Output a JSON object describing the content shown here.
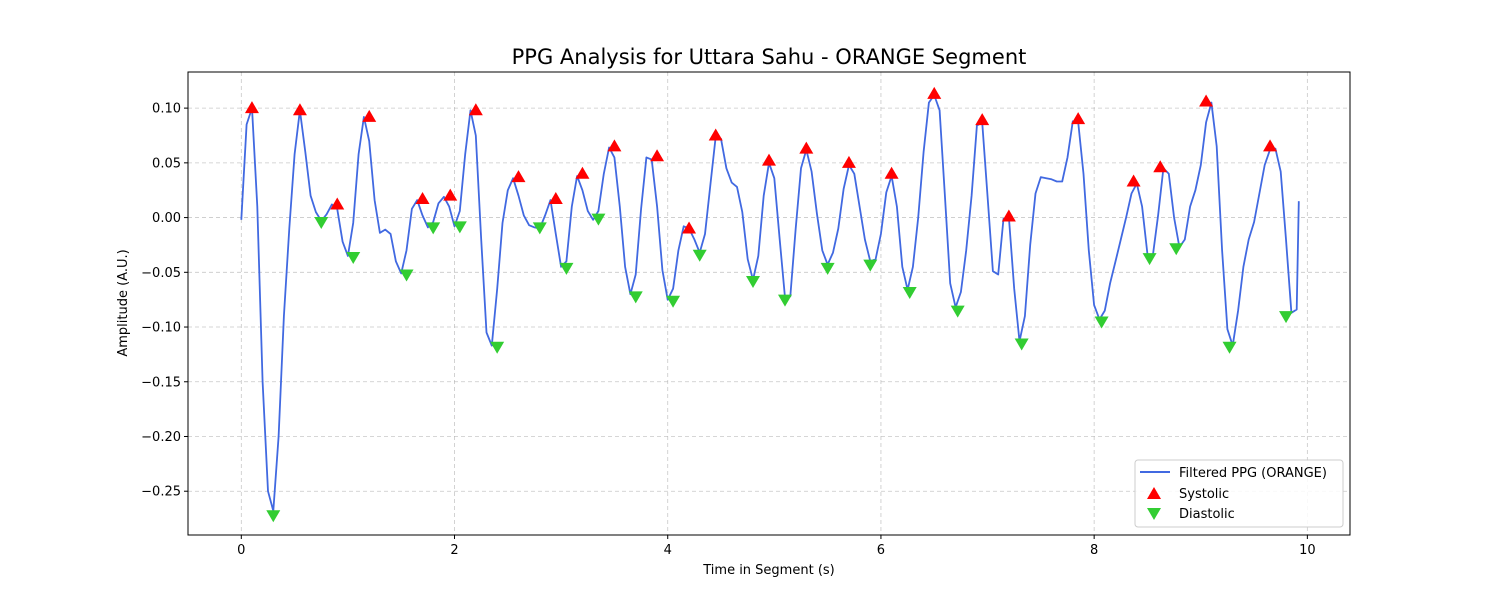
{
  "chart_data": {
    "type": "line",
    "title": "PPG Analysis for Uttara Sahu - ORANGE Segment",
    "xlabel": "Time in Segment (s)",
    "ylabel": "Amplitude (A.U.)",
    "xlim": [
      -0.5,
      10.4
    ],
    "ylim": [
      -0.29,
      0.133
    ],
    "xticks": [
      0,
      2,
      4,
      6,
      8,
      10
    ],
    "xtick_labels": [
      "0",
      "2",
      "4",
      "6",
      "8",
      "10"
    ],
    "yticks": [
      0.1,
      0.05,
      0.0,
      -0.05,
      -0.1,
      -0.15,
      -0.2,
      -0.25
    ],
    "ytick_labels": [
      "0.10",
      "0.05",
      "0.00",
      "−0.05",
      "−0.10",
      "−0.15",
      "−0.20",
      "−0.25"
    ],
    "grid": true,
    "legend_position": "bottom-right",
    "colors": {
      "line": "#4169e1",
      "systolic": "#ff0000",
      "diastolic": "#32cd32"
    },
    "series": [
      {
        "name": "Filtered PPG (ORANGE)",
        "kind": "line",
        "x": [
          0.0,
          0.05,
          0.1,
          0.15,
          0.2,
          0.25,
          0.3,
          0.35,
          0.4,
          0.45,
          0.5,
          0.55,
          0.6,
          0.65,
          0.7,
          0.75,
          0.8,
          0.85,
          0.9,
          0.95,
          1.0,
          1.05,
          1.1,
          1.15,
          1.2,
          1.25,
          1.3,
          1.35,
          1.4,
          1.45,
          1.5,
          1.55,
          1.6,
          1.65,
          1.7,
          1.75,
          1.8,
          1.85,
          1.9,
          1.95,
          2.0,
          2.05,
          2.1,
          2.15,
          2.2,
          2.25,
          2.3,
          2.35,
          2.4,
          2.45,
          2.5,
          2.55,
          2.6,
          2.65,
          2.7,
          2.75,
          2.8,
          2.85,
          2.9,
          2.95,
          3.0,
          3.05,
          3.1,
          3.15,
          3.2,
          3.25,
          3.3,
          3.35,
          3.4,
          3.45,
          3.5,
          3.55,
          3.6,
          3.65,
          3.7,
          3.75,
          3.8,
          3.85,
          3.9,
          3.95,
          4.0,
          4.05,
          4.1,
          4.15,
          4.2,
          4.25,
          4.3,
          4.35,
          4.4,
          4.45,
          4.5,
          4.55,
          4.6,
          4.65,
          4.7,
          4.75,
          4.8,
          4.85,
          4.9,
          4.95,
          5.0,
          5.05,
          5.1,
          5.15,
          5.2,
          5.25,
          5.3,
          5.35,
          5.4,
          5.45,
          5.5,
          5.55,
          5.6,
          5.65,
          5.7,
          5.75,
          5.8,
          5.85,
          5.9,
          5.95,
          6.0,
          6.05,
          6.1,
          6.15,
          6.2,
          6.25,
          6.3,
          6.35,
          6.4,
          6.45,
          6.5,
          6.55,
          6.6,
          6.65,
          6.7,
          6.75,
          6.8,
          6.85,
          6.9,
          6.95,
          7.0,
          7.05,
          7.1,
          7.15,
          7.2,
          7.25,
          7.3,
          7.35,
          7.4,
          7.45,
          7.5,
          7.55,
          7.6,
          7.65,
          7.7,
          7.75,
          7.8,
          7.85,
          7.9,
          7.95,
          8.0,
          8.05,
          8.1,
          8.15,
          8.2,
          8.25,
          8.3,
          8.35,
          8.4,
          8.45,
          8.5,
          8.55,
          8.6,
          8.65,
          8.7,
          8.75,
          8.8,
          8.85,
          8.9,
          8.95,
          9.0,
          9.05,
          9.1,
          9.15,
          9.2,
          9.25,
          9.3,
          9.35,
          9.4,
          9.45,
          9.5,
          9.55,
          9.6,
          9.65,
          9.7,
          9.75,
          9.8,
          9.85,
          9.9,
          9.92
        ],
        "y": [
          -0.002,
          0.085,
          0.1,
          0.01,
          -0.15,
          -0.25,
          -0.268,
          -0.2,
          -0.09,
          -0.01,
          0.058,
          0.098,
          0.06,
          0.02,
          0.005,
          -0.003,
          0.003,
          0.012,
          0.008,
          -0.022,
          -0.035,
          -0.005,
          0.058,
          0.092,
          0.07,
          0.016,
          -0.014,
          -0.011,
          -0.015,
          -0.04,
          -0.051,
          -0.03,
          0.008,
          0.016,
          0.002,
          -0.009,
          -0.004,
          0.013,
          0.019,
          0.01,
          -0.008,
          0.006,
          0.058,
          0.098,
          0.075,
          -0.02,
          -0.105,
          -0.117,
          -0.065,
          -0.005,
          0.025,
          0.036,
          0.02,
          0.002,
          -0.007,
          -0.009,
          -0.01,
          0.002,
          0.016,
          -0.015,
          -0.045,
          -0.04,
          0.01,
          0.038,
          0.025,
          0.006,
          -0.002,
          0.006,
          0.04,
          0.064,
          0.055,
          0.01,
          -0.045,
          -0.07,
          -0.052,
          0.008,
          0.055,
          0.053,
          0.01,
          -0.048,
          -0.075,
          -0.065,
          -0.03,
          -0.008,
          -0.01,
          -0.02,
          -0.032,
          -0.015,
          0.03,
          0.074,
          0.072,
          0.045,
          0.032,
          0.028,
          0.005,
          -0.038,
          -0.057,
          -0.035,
          0.02,
          0.05,
          0.036,
          -0.02,
          -0.073,
          -0.072,
          -0.01,
          0.045,
          0.062,
          0.042,
          0.003,
          -0.03,
          -0.043,
          -0.032,
          -0.01,
          0.026,
          0.048,
          0.04,
          0.01,
          -0.02,
          -0.04,
          -0.038,
          -0.015,
          0.023,
          0.038,
          0.01,
          -0.045,
          -0.066,
          -0.045,
          0.0,
          0.06,
          0.105,
          0.112,
          0.098,
          0.02,
          -0.06,
          -0.082,
          -0.068,
          -0.03,
          0.02,
          0.084,
          0.087,
          0.02,
          -0.049,
          -0.052,
          -0.001,
          0.0,
          -0.065,
          -0.113,
          -0.09,
          -0.025,
          0.022,
          0.037,
          0.036,
          0.035,
          0.033,
          0.033,
          0.055,
          0.088,
          0.087,
          0.04,
          -0.03,
          -0.08,
          -0.093,
          -0.085,
          -0.06,
          -0.04,
          -0.02,
          0.0,
          0.022,
          0.031,
          0.01,
          -0.033,
          -0.035,
          0.002,
          0.045,
          0.04,
          0.0,
          -0.027,
          -0.02,
          0.01,
          0.025,
          0.048,
          0.087,
          0.105,
          0.065,
          -0.03,
          -0.102,
          -0.117,
          -0.085,
          -0.045,
          -0.02,
          -0.004,
          0.022,
          0.048,
          0.062,
          0.063,
          0.042,
          -0.02,
          -0.087,
          -0.084,
          0.015
        ]
      },
      {
        "name": "Systolic",
        "kind": "marker-up",
        "x": [
          0.1,
          0.55,
          0.9,
          1.2,
          1.7,
          1.96,
          2.2,
          2.6,
          2.95,
          3.2,
          3.5,
          3.9,
          4.2,
          4.45,
          4.95,
          5.3,
          5.7,
          6.1,
          6.5,
          6.95,
          7.2,
          7.85,
          8.37,
          8.62,
          9.05,
          9.65
        ],
        "y": [
          0.1,
          0.098,
          0.012,
          0.092,
          0.017,
          0.02,
          0.098,
          0.037,
          0.017,
          0.04,
          0.065,
          0.056,
          -0.01,
          0.075,
          0.052,
          0.063,
          0.05,
          0.04,
          0.113,
          0.089,
          0.001,
          0.09,
          0.033,
          0.046,
          0.106,
          0.065
        ]
      },
      {
        "name": "Diastolic",
        "kind": "marker-down",
        "x": [
          0.3,
          0.75,
          1.05,
          1.55,
          1.8,
          2.05,
          2.4,
          2.8,
          3.05,
          3.35,
          3.7,
          4.05,
          4.3,
          4.8,
          5.1,
          5.5,
          5.9,
          6.27,
          6.72,
          7.32,
          8.07,
          8.52,
          8.77,
          9.27,
          9.8
        ],
        "y": [
          -0.272,
          -0.004,
          -0.036,
          -0.052,
          -0.009,
          -0.008,
          -0.118,
          -0.009,
          -0.046,
          -0.001,
          -0.072,
          -0.076,
          -0.034,
          -0.058,
          -0.075,
          -0.046,
          -0.043,
          -0.068,
          -0.085,
          -0.115,
          -0.095,
          -0.037,
          -0.028,
          -0.118,
          -0.09
        ]
      }
    ]
  }
}
